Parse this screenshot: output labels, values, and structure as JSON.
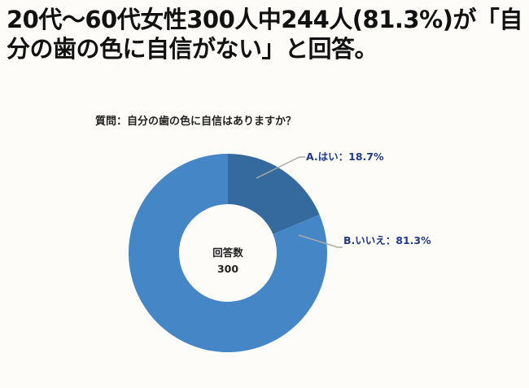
{
  "headline": "20代〜60代女性300人中244人(81.3%)が「自分の歯の色に自信がない」と回答。",
  "chart_data": {
    "type": "pie",
    "subtype": "donut",
    "title": "質問：自分の歯の色に自信はありますか？",
    "center_label": "回答数",
    "center_value": "300",
    "slices": [
      {
        "label": "A.はい：18.7%",
        "value": 18.7,
        "color": "#346a9d"
      },
      {
        "label": "B.いいえ：81.3%",
        "value": 81.3,
        "color": "#4586c6"
      }
    ],
    "label_color": "#1e3a8a",
    "leader_line_color": "#aaaaaa"
  }
}
